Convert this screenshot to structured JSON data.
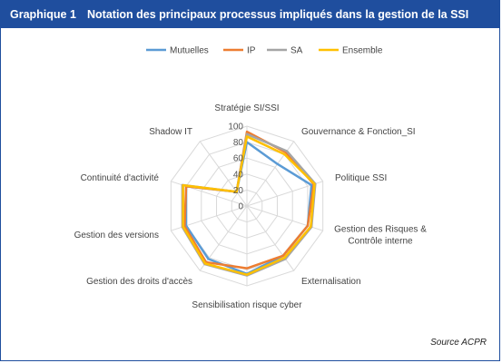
{
  "header": {
    "number": "Graphique 1",
    "title": "Notation des principaux processus impliqués dans la gestion de la SSI"
  },
  "source": "Source ACPR",
  "chart_data": {
    "type": "radar",
    "axes": [
      "Stratégie SI/SSI",
      "Gouvernance & Fonction_SI",
      "Politique SSI",
      "Gestion des Risques & Contrôle interne",
      "Externalisation",
      "Sensibilisation risque cyber",
      "Gestion des droits d'accès",
      "Gestion des versions",
      "Continuité d'activité",
      "Shadow IT"
    ],
    "axis_label_lines": [
      [
        "Stratégie SI/SSI"
      ],
      [
        "Gouvernance & Fonction_SI"
      ],
      [
        "Politique SSI"
      ],
      [
        "Gestion des Risques &",
        "Contrôle interne"
      ],
      [
        "Externalisation"
      ],
      [
        "Sensibilisation risque cyber"
      ],
      [
        "Gestion des droits d'accès"
      ],
      [
        "Gestion des versions"
      ],
      [
        "Continuité d'activité"
      ],
      [
        "Shadow IT"
      ]
    ],
    "rlim": [
      0,
      100
    ],
    "ticks": [
      0,
      20,
      40,
      60,
      80,
      100
    ],
    "legend_position": "top",
    "series": [
      {
        "name": "Mutuelles",
        "color": "#5b9bd5",
        "values": [
          80,
          65,
          85,
          80,
          77,
          85,
          82,
          80,
          80,
          22
        ]
      },
      {
        "name": "IP",
        "color": "#ed7d31",
        "values": [
          93,
          83,
          88,
          80,
          77,
          78,
          87,
          82,
          80,
          22
        ]
      },
      {
        "name": "SA",
        "color": "#a5a5a5",
        "values": [
          90,
          85,
          90,
          85,
          82,
          87,
          90,
          85,
          85,
          22
        ]
      },
      {
        "name": "Ensemble",
        "color": "#ffc000",
        "values": [
          87,
          80,
          89,
          84,
          80,
          86,
          89,
          84,
          84,
          22
        ]
      }
    ]
  }
}
